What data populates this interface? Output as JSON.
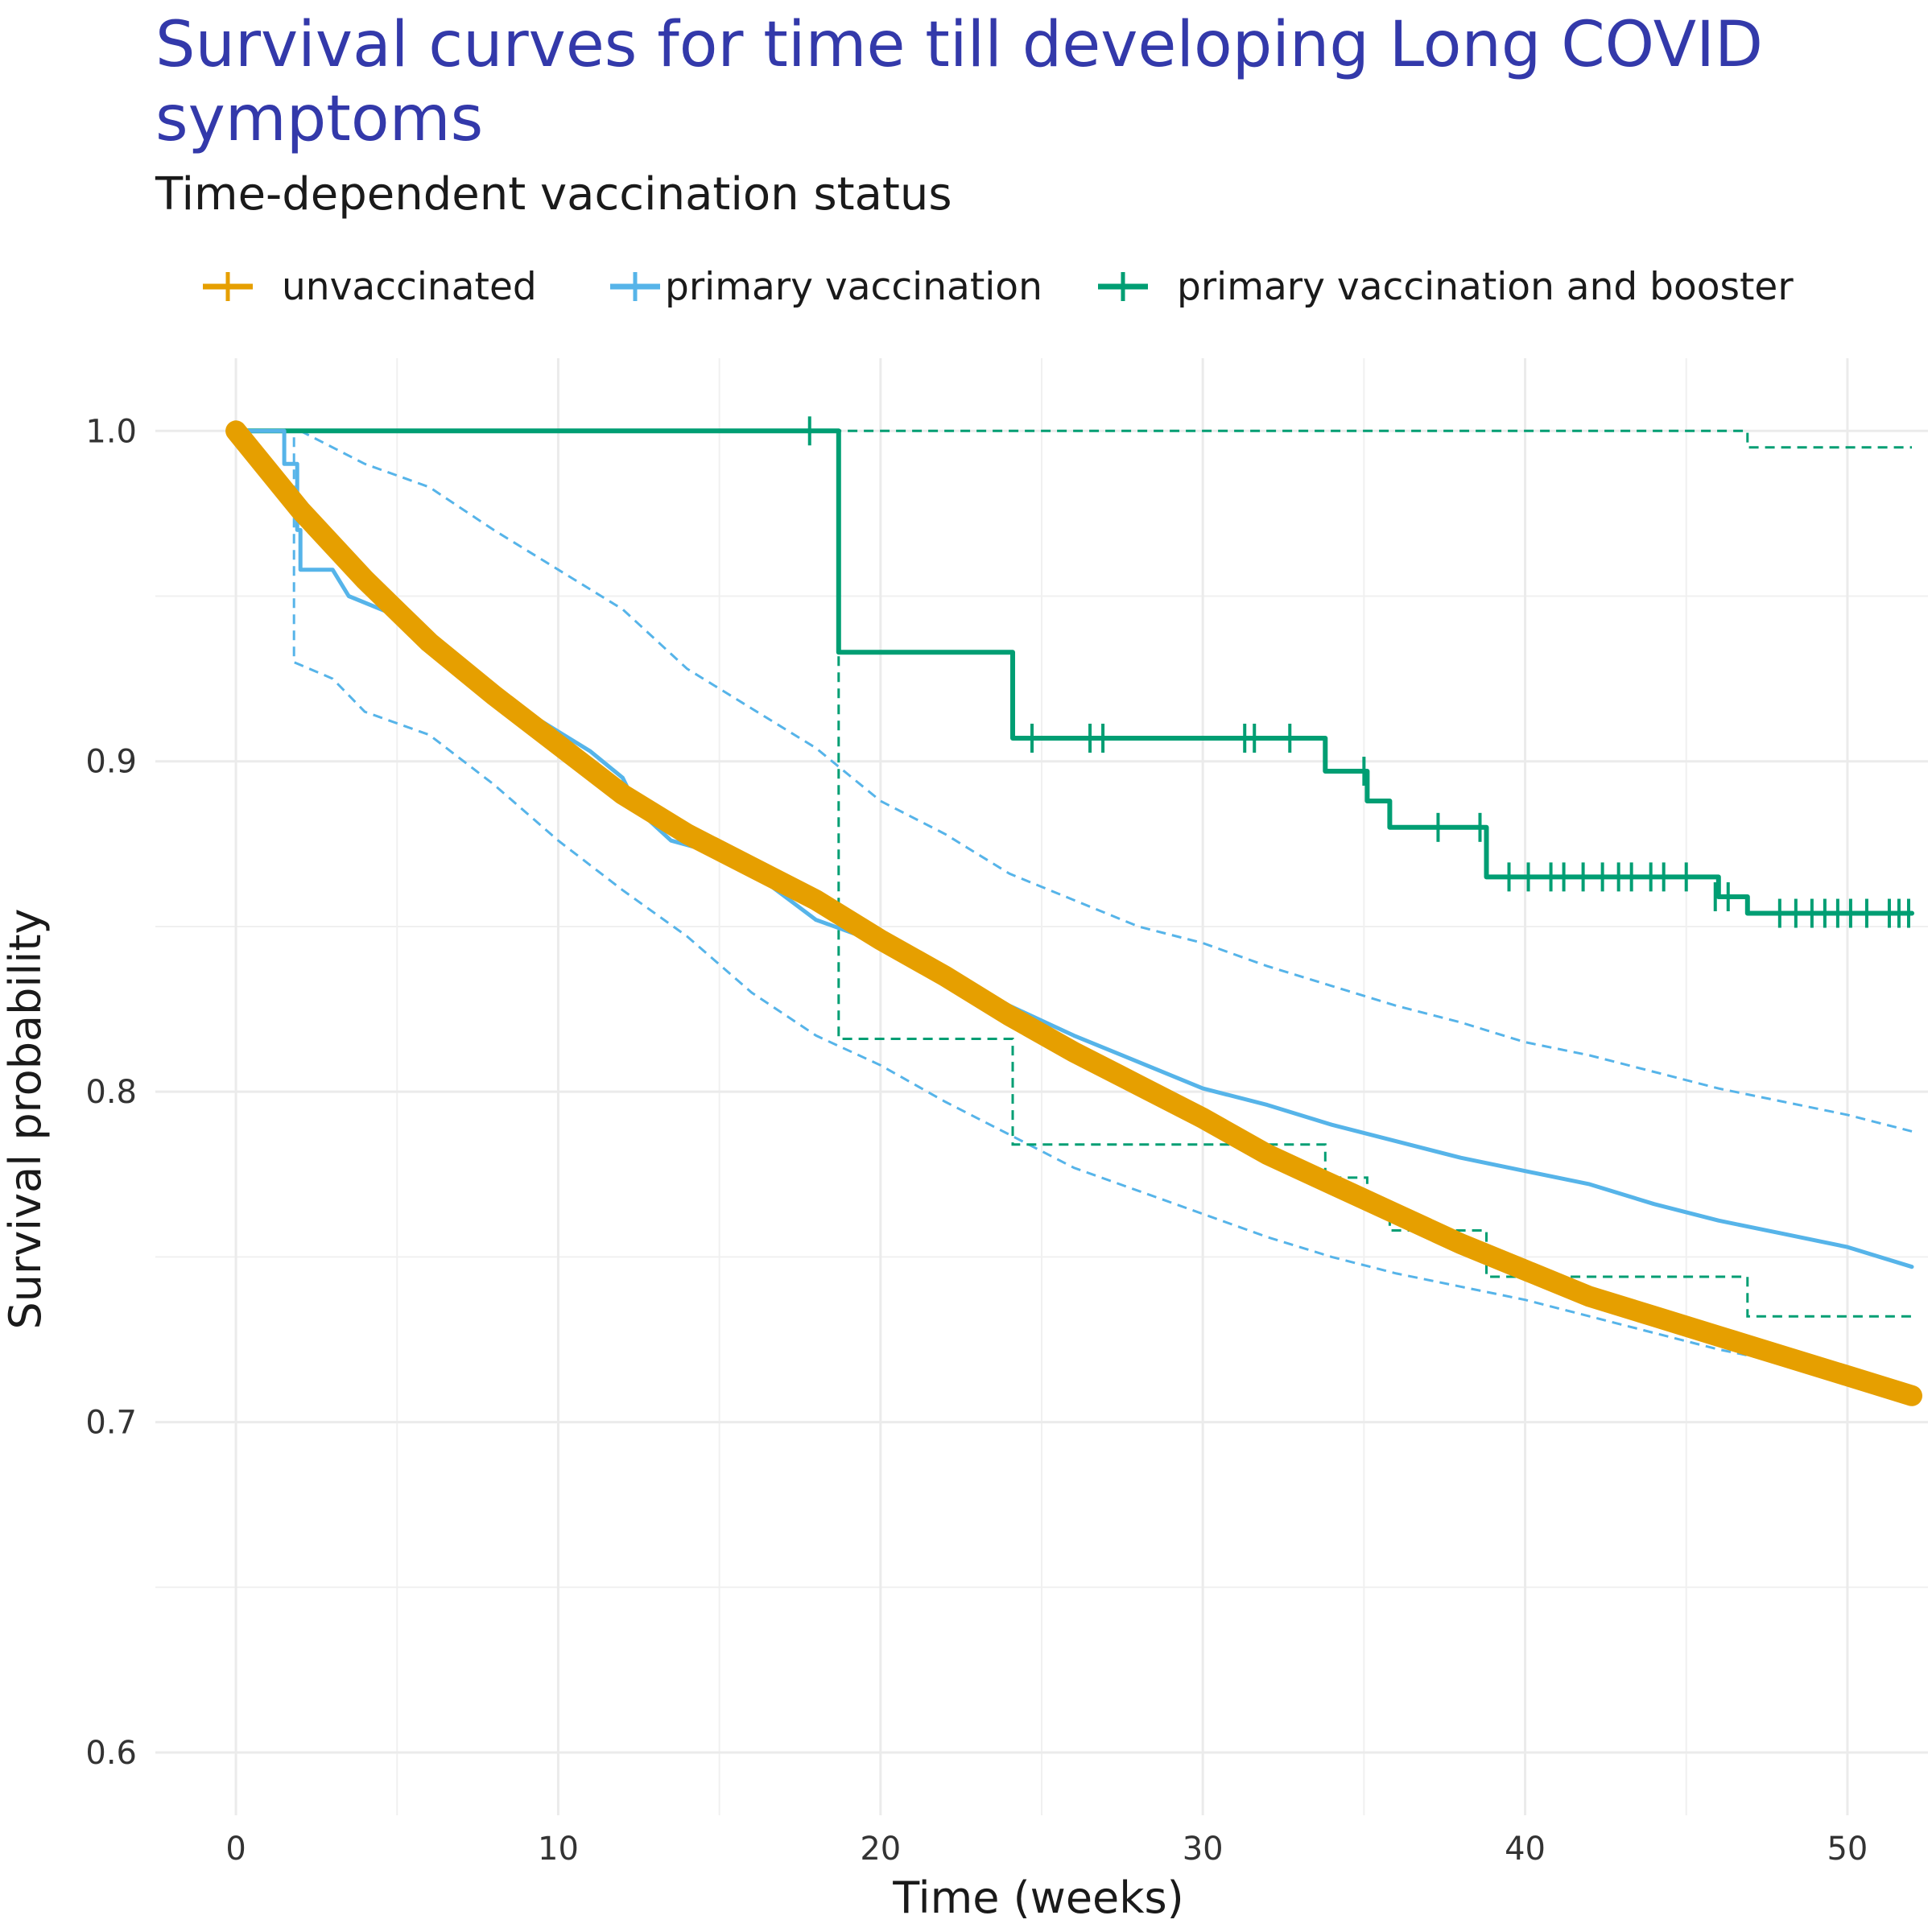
{
  "chart_data": {
    "type": "line",
    "title_line1": "Survival curves for time till developing Long COVID",
    "title_line2": "symptoms",
    "subtitle": "Time-dependent vaccination status",
    "xlabel": "Time (weeks)",
    "ylabel": "Survival probability",
    "xlim": [
      -2.5,
      52.5
    ],
    "ylim": [
      0.581,
      1.022
    ],
    "x_ticks": [
      0,
      10,
      20,
      30,
      40,
      50
    ],
    "y_ticks": [
      0.6,
      0.7,
      0.8,
      0.9,
      1.0
    ],
    "y_tick_labels": [
      "0.6",
      "0.7",
      "0.8",
      "0.9",
      "1.0"
    ],
    "grid": true,
    "legend_position": "top",
    "series": [
      {
        "name": "unvaccinated",
        "color": "#E69F00",
        "values": [
          [
            0,
            1.0
          ],
          [
            1,
            0.988
          ],
          [
            2,
            0.976
          ],
          [
            4,
            0.955
          ],
          [
            6,
            0.936
          ],
          [
            8,
            0.92
          ],
          [
            10,
            0.905
          ],
          [
            12,
            0.89
          ],
          [
            14,
            0.878
          ],
          [
            16,
            0.868
          ],
          [
            18,
            0.858
          ],
          [
            20,
            0.846
          ],
          [
            22,
            0.835
          ],
          [
            24,
            0.823
          ],
          [
            26,
            0.812
          ],
          [
            28,
            0.802
          ],
          [
            30,
            0.792
          ],
          [
            32,
            0.781
          ],
          [
            34,
            0.772
          ],
          [
            36,
            0.763
          ],
          [
            38,
            0.754
          ],
          [
            40,
            0.746
          ],
          [
            42,
            0.738
          ],
          [
            44,
            0.732
          ],
          [
            46,
            0.726
          ],
          [
            48,
            0.72
          ],
          [
            50,
            0.714
          ],
          [
            52,
            0.708
          ]
        ]
      },
      {
        "name": "primary vaccination",
        "color": "#56B4E9",
        "values": [
          [
            0,
            1.0
          ],
          [
            1.5,
            1.0
          ],
          [
            1.5,
            0.99
          ],
          [
            1.9,
            0.99
          ],
          [
            1.9,
            0.97
          ],
          [
            2,
            0.97
          ],
          [
            2,
            0.958
          ],
          [
            3,
            0.958
          ],
          [
            3.5,
            0.95
          ],
          [
            5,
            0.944
          ],
          [
            7,
            0.93
          ],
          [
            9,
            0.915
          ],
          [
            11,
            0.903
          ],
          [
            12,
            0.895
          ],
          [
            12.5,
            0.885
          ],
          [
            13.5,
            0.876
          ],
          [
            15,
            0.872
          ],
          [
            16.5,
            0.863
          ],
          [
            18,
            0.852
          ],
          [
            20,
            0.845
          ],
          [
            22,
            0.837
          ],
          [
            24,
            0.826
          ],
          [
            26,
            0.817
          ],
          [
            28,
            0.809
          ],
          [
            30,
            0.801
          ],
          [
            32,
            0.796
          ],
          [
            34,
            0.79
          ],
          [
            36,
            0.785
          ],
          [
            38,
            0.78
          ],
          [
            40,
            0.776
          ],
          [
            42,
            0.772
          ],
          [
            44,
            0.766
          ],
          [
            46,
            0.761
          ],
          [
            48,
            0.757
          ],
          [
            50,
            0.753
          ],
          [
            52,
            0.747
          ]
        ],
        "upper": [
          [
            0,
            1.0
          ],
          [
            2,
            1.0
          ],
          [
            4,
            0.99
          ],
          [
            6,
            0.983
          ],
          [
            8,
            0.97
          ],
          [
            10,
            0.958
          ],
          [
            12,
            0.946
          ],
          [
            14,
            0.928
          ],
          [
            16,
            0.916
          ],
          [
            18,
            0.904
          ],
          [
            20,
            0.888
          ],
          [
            22,
            0.878
          ],
          [
            24,
            0.866
          ],
          [
            26,
            0.858
          ],
          [
            28,
            0.85
          ],
          [
            30,
            0.845
          ],
          [
            32,
            0.838
          ],
          [
            34,
            0.832
          ],
          [
            36,
            0.826
          ],
          [
            38,
            0.821
          ],
          [
            40,
            0.815
          ],
          [
            42,
            0.811
          ],
          [
            44,
            0.806
          ],
          [
            46,
            0.801
          ],
          [
            48,
            0.797
          ],
          [
            50,
            0.793
          ],
          [
            52,
            0.788
          ]
        ],
        "lower": [
          [
            0,
            1.0
          ],
          [
            1.8,
            1.0
          ],
          [
            1.8,
            0.93
          ],
          [
            3,
            0.925
          ],
          [
            4,
            0.915
          ],
          [
            6,
            0.908
          ],
          [
            8,
            0.893
          ],
          [
            10,
            0.876
          ],
          [
            12,
            0.861
          ],
          [
            14,
            0.847
          ],
          [
            16,
            0.83
          ],
          [
            18,
            0.817
          ],
          [
            20,
            0.808
          ],
          [
            22,
            0.797
          ],
          [
            24,
            0.787
          ],
          [
            26,
            0.777
          ],
          [
            28,
            0.77
          ],
          [
            30,
            0.763
          ],
          [
            32,
            0.756
          ],
          [
            34,
            0.75
          ],
          [
            36,
            0.745
          ],
          [
            38,
            0.741
          ],
          [
            40,
            0.737
          ],
          [
            42,
            0.732
          ],
          [
            44,
            0.727
          ],
          [
            46,
            0.722
          ],
          [
            48,
            0.718
          ],
          [
            50,
            0.714
          ],
          [
            52,
            0.708
          ]
        ]
      },
      {
        "name": "primary vaccination and booster",
        "color": "#009E73",
        "values": [
          [
            0,
            1.0
          ],
          [
            18.7,
            1.0
          ],
          [
            18.7,
            0.933
          ],
          [
            24.1,
            0.933
          ],
          [
            24.1,
            0.907
          ],
          [
            33.8,
            0.907
          ],
          [
            33.8,
            0.897
          ],
          [
            35.1,
            0.897
          ],
          [
            35.1,
            0.888
          ],
          [
            35.8,
            0.888
          ],
          [
            35.8,
            0.88
          ],
          [
            38.8,
            0.88
          ],
          [
            38.8,
            0.865
          ],
          [
            46.0,
            0.865
          ],
          [
            46.0,
            0.859
          ],
          [
            46.9,
            0.859
          ],
          [
            46.9,
            0.854
          ],
          [
            52,
            0.854
          ]
        ],
        "upper": [
          [
            0,
            1.0
          ],
          [
            46.9,
            1.0
          ],
          [
            46.9,
            0.995
          ],
          [
            52,
            0.995
          ]
        ],
        "lower": [
          [
            18.7,
            1.0
          ],
          [
            18.7,
            0.816
          ],
          [
            24.1,
            0.816
          ],
          [
            24.1,
            0.784
          ],
          [
            33.8,
            0.784
          ],
          [
            33.8,
            0.774
          ],
          [
            35.1,
            0.774
          ],
          [
            35.1,
            0.766
          ],
          [
            35.8,
            0.766
          ],
          [
            35.8,
            0.758
          ],
          [
            38.8,
            0.758
          ],
          [
            38.8,
            0.744
          ],
          [
            46.9,
            0.744
          ],
          [
            46.9,
            0.732
          ],
          [
            52,
            0.732
          ]
        ],
        "censored": [
          [
            17.8,
            1.0
          ],
          [
            24.7,
            0.907
          ],
          [
            26.5,
            0.907
          ],
          [
            26.9,
            0.907
          ],
          [
            31.3,
            0.907
          ],
          [
            31.6,
            0.907
          ],
          [
            32.7,
            0.907
          ],
          [
            35.0,
            0.897
          ],
          [
            37.3,
            0.88
          ],
          [
            38.6,
            0.88
          ],
          [
            39.5,
            0.865
          ],
          [
            40.1,
            0.865
          ],
          [
            40.8,
            0.865
          ],
          [
            41.2,
            0.865
          ],
          [
            41.8,
            0.865
          ],
          [
            42.4,
            0.865
          ],
          [
            42.9,
            0.865
          ],
          [
            43.3,
            0.865
          ],
          [
            43.9,
            0.865
          ],
          [
            44.3,
            0.865
          ],
          [
            45.0,
            0.865
          ],
          [
            45.9,
            0.859
          ],
          [
            46.3,
            0.859
          ],
          [
            47.9,
            0.854
          ],
          [
            48.4,
            0.854
          ],
          [
            48.9,
            0.854
          ],
          [
            49.3,
            0.854
          ],
          [
            49.7,
            0.854
          ],
          [
            50.1,
            0.854
          ],
          [
            50.6,
            0.854
          ],
          [
            51.3,
            0.854
          ],
          [
            51.6,
            0.854
          ],
          [
            51.9,
            0.854
          ]
        ]
      }
    ]
  }
}
